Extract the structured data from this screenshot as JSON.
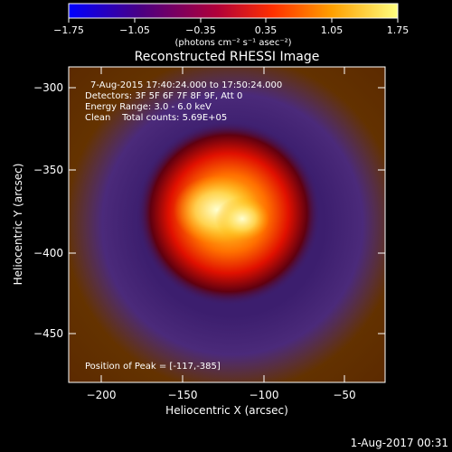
{
  "chart_data": {
    "type": "heatmap",
    "title": "Reconstructed RHESSI Image",
    "xlabel": "Heliocentric X (arcsec)",
    "ylabel": "Heliocentric Y (arcsec)",
    "xlim": [
      -220,
      -25
    ],
    "ylim": [
      -478,
      -288
    ],
    "x_ticks": [
      -200,
      -150,
      -100,
      -50
    ],
    "x_tick_labels": [
      "−200",
      "−150",
      "−100",
      "−50"
    ],
    "y_ticks": [
      -300,
      -350,
      -400,
      -450
    ],
    "y_tick_labels": [
      "−300",
      "−350",
      "−400",
      "−450"
    ],
    "colorbar": {
      "range": [
        -1.75,
        1.75
      ],
      "ticks": [
        -1.75,
        -1.05,
        -0.35,
        0.35,
        1.05,
        1.75
      ],
      "tick_labels": [
        "−1.75",
        "−1.05",
        "−0.35",
        "0.35",
        "1.05",
        "1.75"
      ],
      "units": "(photons cm⁻² s⁻¹ asec⁻²)",
      "colors": [
        "#0000ff",
        "#4b0082",
        "#b0003a",
        "#ff3000",
        "#ffa000",
        "#ffff80"
      ]
    },
    "annotations": [
      "7-Aug-2015 17:40:24.000 to 17:50:24.000",
      "Detectors: 3F 5F 6F 7F 8F 9F, Att 0",
      "Energy Range: 3.0 - 6.0 keV",
      "Clean    Total counts: 5.69E+05"
    ],
    "peak_label": "Position of Peak = [-117,-385]",
    "peak_position": [
      -117,
      -385
    ],
    "source": {
      "center": [
        -120,
        -380
      ],
      "core_radius": 30,
      "ring_radius": 60
    }
  },
  "footer": {
    "timestamp": "1-Aug-2017 00:31"
  }
}
